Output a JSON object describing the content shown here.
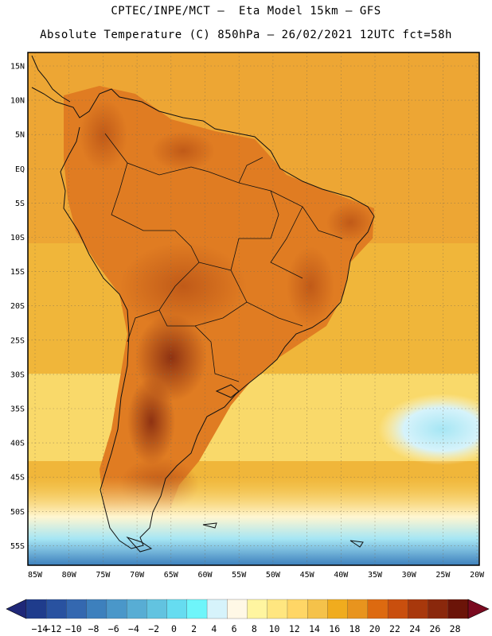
{
  "title_line1": "CPTEC/INPE/MCT –  Eta Model 15km – GFS",
  "title_line2": "Absolute Temperature (C) 850hPa – 26/02/2021 12UTC fct=58h",
  "lat_ticks": [
    "15N",
    "10N",
    "5N",
    "EQ",
    "5S",
    "10S",
    "15S",
    "20S",
    "25S",
    "30S",
    "35S",
    "40S",
    "45S",
    "50S",
    "55S"
  ],
  "lon_ticks": [
    "85W",
    "80W",
    "75W",
    "70W",
    "65W",
    "60W",
    "55W",
    "50W",
    "45W",
    "40W",
    "35W",
    "30W",
    "25W",
    "20W"
  ],
  "colorbar": {
    "labels": [
      "-14",
      "-12",
      "-10",
      "-8",
      "-6",
      "-4",
      "-2",
      "0",
      "2",
      "4",
      "6",
      "8",
      "10",
      "12",
      "14",
      "16",
      "18",
      "20",
      "22",
      "24",
      "26",
      "28"
    ],
    "colors": [
      "#1f3c8c",
      "#2952a0",
      "#3468b0",
      "#3d80bd",
      "#4a97c9",
      "#58add4",
      "#62c3e0",
      "#66dcf0",
      "#6ef5fa",
      "#d6f3fb",
      "#fff8e6",
      "#fff5a0",
      "#ffe680",
      "#ffd666",
      "#f5c24a",
      "#f0ac1e",
      "#e8941e",
      "#dd6a10",
      "#c94f0e",
      "#a8380c",
      "#8a280c",
      "#6b1408"
    ],
    "low_arrow_color": "#1f2878",
    "high_arrow_color": "#7a0a20"
  },
  "field_colors": {
    "ocean_cool": "#f9d96a",
    "ocean_mid": "#f0b63a",
    "ocean_warm": "#eca334",
    "land_warm": "#e07c22",
    "land_hot": "#c05a18",
    "land_hottest": "#8e3212",
    "pale_band": "#fff6d0",
    "cold_band": "#a6e6f4",
    "very_cold": "#5cc2dd"
  }
}
